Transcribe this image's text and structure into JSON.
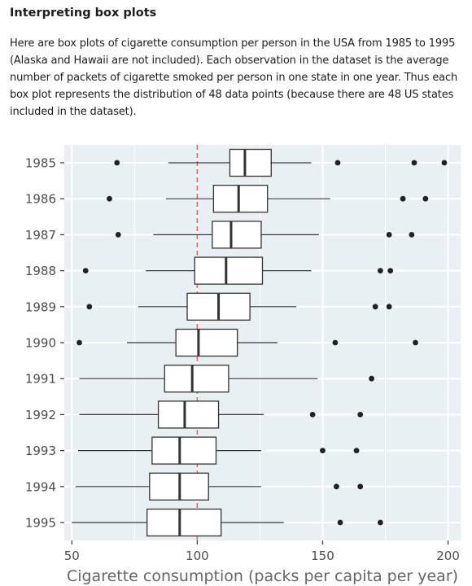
{
  "heading": "Interpreting box plots",
  "description_lines": [
    "Here are box plots of cigarette consumption per person in the USA from 1985 to 1995",
    "(Alaska and Hawaii are not included). Each observation in the dataset is the average",
    "number of packets of cigarette smoked per person in one state in one year. Thus each",
    "box plot represents the distribution of 48 data points (because there are 48 US states",
    "included in the dataset)."
  ],
  "colors": {
    "panel_background": "#e9f0f3",
    "grid": "#ffffff",
    "box_stroke": "#333333",
    "reference_line": "#e06666",
    "outlier": "#222222"
  },
  "chart_data": {
    "type": "box",
    "orientation": "horizontal",
    "title": "",
    "xlabel": "Cigarette consumption (packs per capita per year)",
    "ylabel": "",
    "xlim": [
      47,
      205
    ],
    "x_ticks": [
      50,
      100,
      150,
      200
    ],
    "reference_line": {
      "x": 100,
      "style": "dashed"
    },
    "grid": true,
    "series": [
      {
        "year": "1985",
        "whisker_low": 88.5,
        "q1": 113,
        "median": 119,
        "q3": 129.5,
        "whisker_high": 145.5,
        "outliers": [
          68,
          156,
          186.5,
          198.5
        ]
      },
      {
        "year": "1986",
        "whisker_low": 87.5,
        "q1": 106.5,
        "median": 116.5,
        "q3": 128,
        "whisker_high": 153,
        "outliers": [
          65,
          182,
          191
        ]
      },
      {
        "year": "1987",
        "whisker_low": 82.5,
        "q1": 106,
        "median": 113.5,
        "q3": 125.5,
        "whisker_high": 148.5,
        "outliers": [
          68.5,
          176.5,
          185.5
        ]
      },
      {
        "year": "1988",
        "whisker_low": 79.5,
        "q1": 99,
        "median": 111.5,
        "q3": 126,
        "whisker_high": 145.5,
        "outliers": [
          55.5,
          173,
          177
        ]
      },
      {
        "year": "1989",
        "whisker_low": 76.5,
        "q1": 96,
        "median": 108.5,
        "q3": 121,
        "whisker_high": 139.5,
        "outliers": [
          57,
          171,
          176.5
        ]
      },
      {
        "year": "1990",
        "whisker_low": 72,
        "q1": 91.5,
        "median": 100.5,
        "q3": 116,
        "whisker_high": 132,
        "outliers": [
          53,
          155,
          187
        ]
      },
      {
        "year": "1991",
        "whisker_low": 53,
        "q1": 87,
        "median": 98,
        "q3": 112.5,
        "whisker_high": 148,
        "outliers": [
          169.5
        ]
      },
      {
        "year": "1992",
        "whisker_low": 53,
        "q1": 84.5,
        "median": 95,
        "q3": 108.5,
        "whisker_high": 126.5,
        "outliers": [
          146,
          165
        ]
      },
      {
        "year": "1993",
        "whisker_low": 52.5,
        "q1": 82,
        "median": 93,
        "q3": 107.5,
        "whisker_high": 125.5,
        "outliers": [
          150,
          163.5
        ]
      },
      {
        "year": "1994",
        "whisker_low": 51.5,
        "q1": 81,
        "median": 93,
        "q3": 104.5,
        "whisker_high": 125.5,
        "outliers": [
          155.5,
          165
        ]
      },
      {
        "year": "1995",
        "whisker_low": 50,
        "q1": 80,
        "median": 93,
        "q3": 109.5,
        "whisker_high": 134.5,
        "outliers": [
          157,
          173
        ]
      }
    ]
  }
}
